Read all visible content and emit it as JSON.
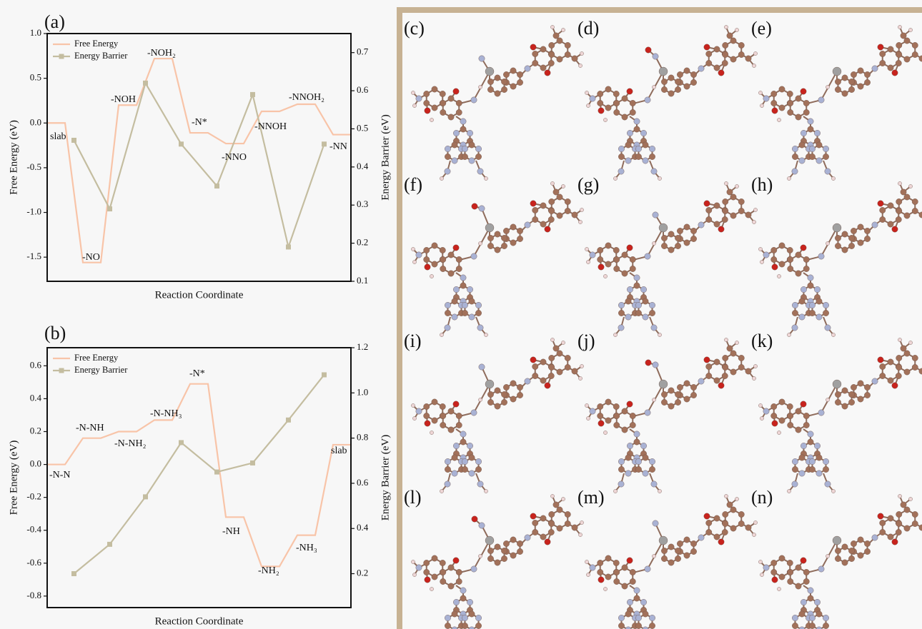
{
  "chart_data": [
    {
      "type": "line",
      "panel_label": "(a)",
      "xlabel": "Reaction Coordinate",
      "ylabel": "Free Energy (eV)",
      "y2label": "Energy Barrier (eV)",
      "xlim": [
        0,
        17
      ],
      "ylim": [
        -1.77,
        1.0
      ],
      "yticks": [
        -1.5,
        {
          "value": -1,
          "label": "-1.0"
        },
        -0.5,
        {
          "value": 0,
          "label": "0.0"
        },
        0.5,
        {
          "value": 1,
          "label": "1.0"
        }
      ],
      "y2lim": [
        0.1,
        0.75
      ],
      "y2ticks": [
        0.1,
        0.2,
        0.3,
        0.4,
        0.5,
        0.6,
        0.7
      ],
      "legend": "upper left",
      "series": [
        {
          "name": "Free Energy",
          "color": "#f8c4a8",
          "x": [
            0,
            1,
            2,
            3,
            4,
            5,
            6,
            7,
            8,
            9,
            10,
            11,
            12,
            13,
            14,
            15,
            16,
            17
          ],
          "values": [
            0,
            0,
            -1.56,
            -1.56,
            0.2,
            0.2,
            0.72,
            0.72,
            -0.11,
            -0.11,
            -0.23,
            -0.23,
            0.13,
            0.13,
            0.21,
            0.21,
            -0.13,
            -0.13
          ]
        },
        {
          "name": "Energy Barrier",
          "color": "#c4bda0",
          "axis": "y2",
          "marker": "square",
          "x": [
            1.5,
            3.5,
            5.5,
            7.5,
            9.5,
            11.5,
            13.5,
            15.5
          ],
          "values": [
            0.47,
            0.29,
            0.62,
            0.46,
            0.35,
            0.59,
            0.19,
            0.46
          ]
        }
      ],
      "annotations": [
        "slab",
        "-NO",
        "-NOH",
        "-NOH₂",
        "-N*",
        "-NNO",
        "-NNOH",
        "-NNOH₂",
        "-NN"
      ]
    },
    {
      "type": "line",
      "panel_label": "(b)",
      "xlabel": "Reaction Coordinate",
      "ylabel": "Free Energy (eV)",
      "y2label": "Energy Barrier (eV)",
      "xlim": [
        0,
        17
      ],
      "ylim": [
        -0.87,
        0.71
      ],
      "yticks": [
        -0.8,
        -0.6,
        -0.4,
        -0.2,
        {
          "value": 0,
          "label": "0.0"
        },
        0.2,
        0.4,
        0.6
      ],
      "y2lim": [
        0.05,
        1.2
      ],
      "y2ticks": [
        0.2,
        0.4,
        0.6,
        0.8,
        {
          "value": 1,
          "label": "1.0"
        },
        1.2
      ],
      "legend": "upper left",
      "series": [
        {
          "name": "Free Energy",
          "color": "#f8c4a8",
          "x": [
            0,
            1,
            2,
            3,
            4,
            5,
            6,
            7,
            8,
            9,
            10,
            11,
            12,
            13,
            14,
            15,
            16,
            17
          ],
          "values": [
            0,
            0,
            0.16,
            0.16,
            0.2,
            0.2,
            0.27,
            0.27,
            0.49,
            0.49,
            -0.32,
            -0.32,
            -0.62,
            -0.62,
            -0.43,
            -0.43,
            0.12,
            0.12
          ]
        },
        {
          "name": "Energy Barrier",
          "color": "#c4bda0",
          "axis": "y2",
          "marker": "square",
          "x": [
            1.5,
            3.5,
            5.5,
            7.5,
            9.5,
            11.5,
            13.5,
            15.5
          ],
          "values": [
            0.2,
            0.33,
            0.54,
            0.78,
            0.65,
            0.69,
            0.88,
            1.08
          ]
        }
      ],
      "annotations": [
        "-N-N",
        "-N-NH",
        "-N-NH₂",
        "-N-NH₃",
        "-N*",
        "-NH",
        "-NH₂",
        "-NH₃",
        "slab"
      ]
    }
  ],
  "panels": [
    "(c)",
    "(d)",
    "(e)",
    "(f)",
    "(g)",
    "(h)",
    "(i)",
    "(j)",
    "(k)",
    "(l)",
    "(m)",
    "(n)"
  ]
}
